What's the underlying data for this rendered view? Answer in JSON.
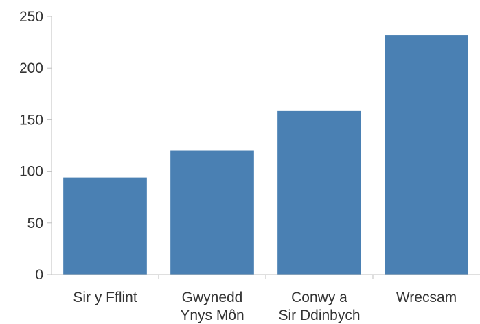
{
  "chart_data": {
    "type": "bar",
    "title": "",
    "xlabel": "",
    "ylabel": "",
    "categories": [
      [
        "Sir y Fflint"
      ],
      [
        "Gwynedd",
        "Ynys Môn"
      ],
      [
        "Conwy a",
        "Sir Ddinbych"
      ],
      [
        "Wrecsam"
      ]
    ],
    "values": [
      94,
      120,
      159,
      232
    ],
    "ylim": [
      0,
      250
    ],
    "yticks": [
      "0",
      "50",
      "100",
      "150",
      "200",
      "250"
    ],
    "grid": false,
    "legend": "none",
    "colors": {
      "bar": "#4a80b3",
      "axis": "#bfbfbf",
      "text": "#333333"
    }
  }
}
